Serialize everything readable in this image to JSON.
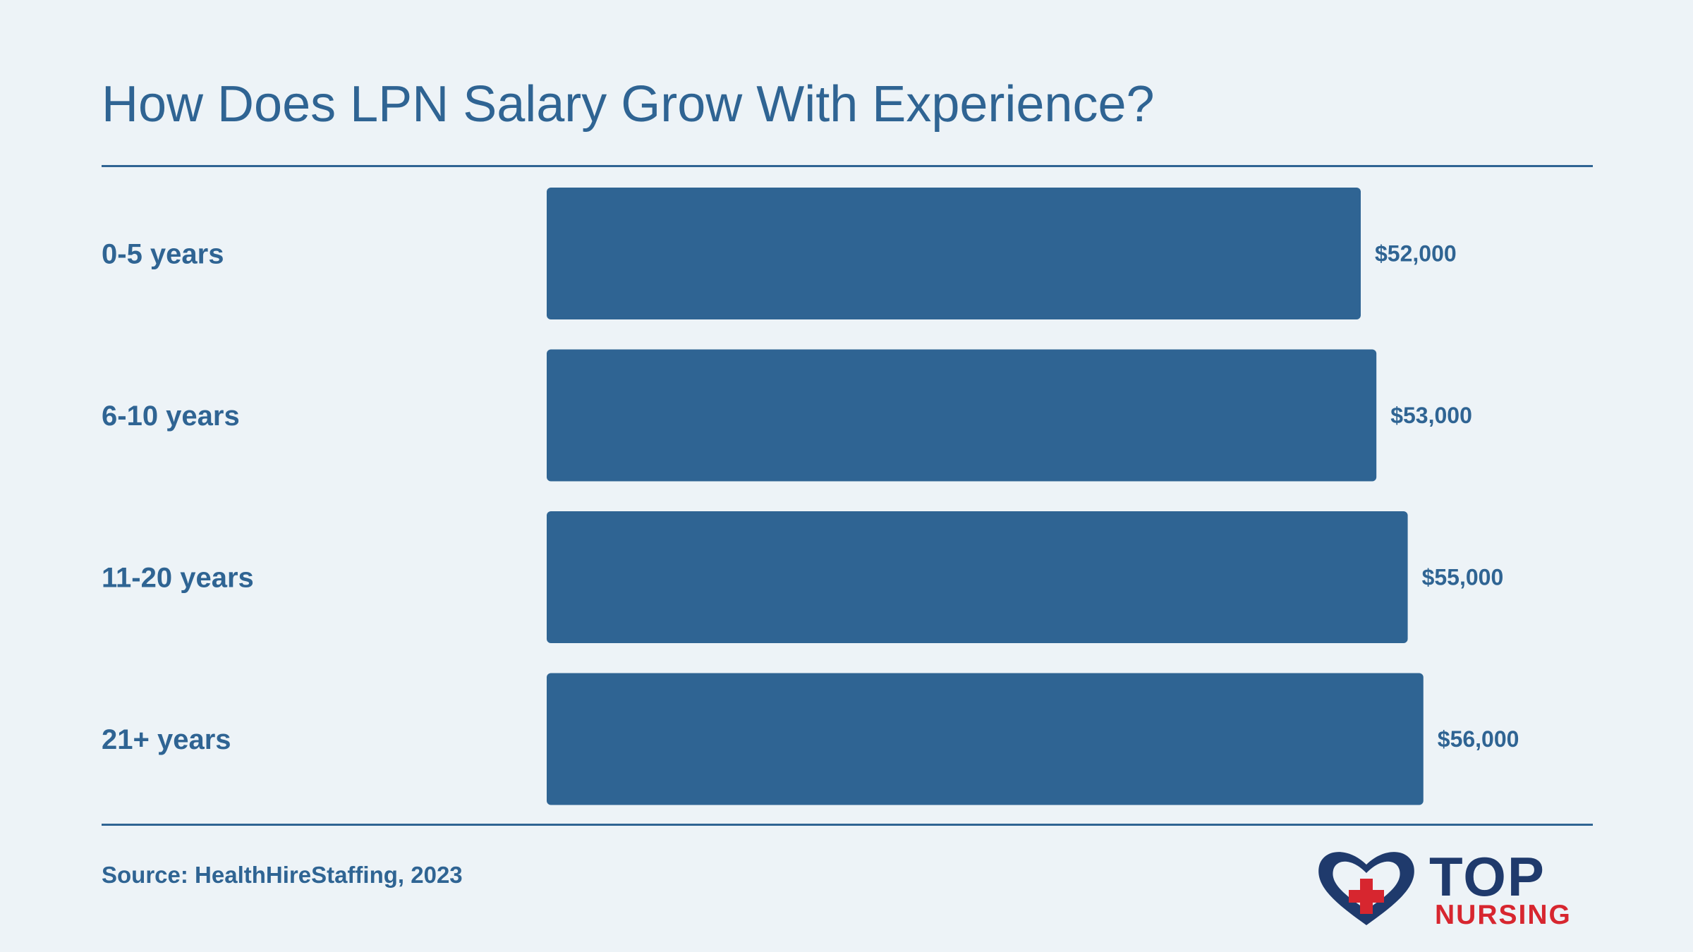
{
  "title": "How Does LPN Salary Grow With Experience?",
  "source": "Source: HealthHireStaffing, 2023",
  "logo": {
    "top_word": "TOP",
    "bottom_word": "NURSING",
    "icon": "heart-cross-icon"
  },
  "colors": {
    "bar": "#2f6493",
    "text": "#2f6493",
    "background": "#edf3f7",
    "logo_navy": "#1f3a6c",
    "logo_red": "#d7262f"
  },
  "chart_data": {
    "type": "bar",
    "orientation": "horizontal",
    "categories": [
      "0-5 years",
      "6-10 years",
      "11-20 years",
      "21+ years"
    ],
    "values": [
      52000,
      53000,
      55000,
      56000
    ],
    "value_labels": [
      "$52,000",
      "$53,000",
      "$55,000",
      "$56,000"
    ],
    "xlim": [
      0,
      60000
    ],
    "grid": false,
    "legend": "none"
  }
}
